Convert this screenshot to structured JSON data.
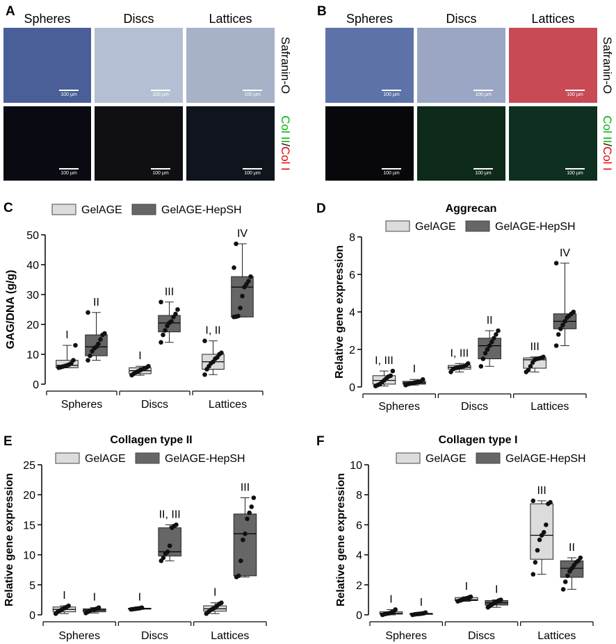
{
  "figure": {
    "micrograph_panels": [
      {
        "letter": "A",
        "column_titles": [
          "Spheres",
          "Discs",
          "Lattices"
        ],
        "row_labels": {
          "top": "Safranin-O",
          "bottom_green": "Col II",
          "slash": "/",
          "bottom_red": "Col I"
        },
        "scale_bar": "100 µm",
        "row_colors": {
          "top": [
            "#4a5f98",
            "#b5bfd3",
            "#a7b2c9"
          ],
          "bottom": [
            "#0a0a12",
            "#101014",
            "#10141c"
          ]
        },
        "label_colors": {
          "col_ii": "#00b000",
          "col_i": "#e00000"
        }
      },
      {
        "letter": "B",
        "column_titles": [
          "Spheres",
          "Discs",
          "Lattices"
        ],
        "row_labels": {
          "top": "Safranin-O",
          "bottom_green": "Col II",
          "slash": "/",
          "bottom_red": "Col I"
        },
        "scale_bar": "100 µm",
        "row_colors": {
          "top": [
            "#5d73a8",
            "#9aa6c3",
            "#c74a55"
          ],
          "bottom": [
            "#08080c",
            "#0d2a1a",
            "#0f3020"
          ]
        },
        "label_colors": {
          "col_ii": "#00b000",
          "col_i": "#e00000"
        }
      }
    ]
  },
  "legend": {
    "series": [
      "GelAGE",
      "GelAGE-HepSH"
    ],
    "colors": {
      "GelAGE": "#dcdcdc",
      "GelAGE-HepSH": "#666666"
    }
  },
  "chart_data": [
    {
      "panel": "C",
      "type": "box",
      "title": "",
      "ylabel": "GAG/DNA (g/g)",
      "ylim": [
        0,
        50
      ],
      "yticks": [
        0,
        10,
        20,
        30,
        40,
        50
      ],
      "categories": [
        "Spheres",
        "Discs",
        "Lattices"
      ],
      "series": [
        {
          "name": "GelAGE",
          "boxes": [
            {
              "min": 5.5,
              "q1": 5.5,
              "median": 6.3,
              "q3": 8.0,
              "max": 13.0,
              "points": [
                5.5,
                5.7,
                5.9,
                6.1,
                6.3,
                6.6,
                7.0,
                8.0,
                13.0
              ],
              "label": "I"
            },
            {
              "min": 3.0,
              "q1": 3.5,
              "median": 4.5,
              "q3": 5.5,
              "max": 6.0,
              "points": [
                3.0,
                3.5,
                4.0,
                4.3,
                4.6,
                5.0,
                5.3,
                5.5,
                6.0
              ],
              "label": "I"
            },
            {
              "min": 3.2,
              "q1": 5.0,
              "median": 7.5,
              "q3": 10.0,
              "max": 14.5,
              "points": [
                3.2,
                5.0,
                6.0,
                7.0,
                7.5,
                8.5,
                9.0,
                10.0,
                10.5,
                14.5
              ],
              "label": "I, II"
            }
          ]
        },
        {
          "name": "GelAGE-HepSH",
          "boxes": [
            {
              "min": 8.0,
              "q1": 9.5,
              "median": 12.5,
              "q3": 16.5,
              "max": 24.0,
              "points": [
                8.0,
                9.5,
                11.0,
                12.0,
                12.5,
                13.5,
                15.0,
                16.5,
                17.0,
                24.0
              ],
              "label": "II"
            },
            {
              "min": 14.0,
              "q1": 17.5,
              "median": 20.5,
              "q3": 23.0,
              "max": 27.5,
              "points": [
                14.0,
                16.5,
                18.0,
                19.5,
                20.5,
                21.0,
                22.5,
                23.5,
                25.0,
                27.5
              ],
              "label": "III"
            },
            {
              "min": 22.5,
              "q1": 22.5,
              "median": 32.5,
              "q3": 36.0,
              "max": 47.0,
              "points": [
                22.5,
                22.6,
                22.8,
                25.5,
                29.5,
                32.5,
                33.5,
                34.5,
                36.0,
                39.0,
                47.0
              ],
              "label": "IV"
            }
          ]
        }
      ]
    },
    {
      "panel": "D",
      "type": "box",
      "title": "Aggrecan",
      "ylabel": "Relative gene expression",
      "ylim": [
        0,
        8
      ],
      "yticks": [
        0,
        2,
        4,
        6,
        8
      ],
      "categories": [
        "Spheres",
        "Discs",
        "Lattices"
      ],
      "series": [
        {
          "name": "GelAGE",
          "boxes": [
            {
              "min": 0.05,
              "q1": 0.15,
              "median": 0.35,
              "q3": 0.6,
              "max": 0.85,
              "points": [
                0.05,
                0.1,
                0.15,
                0.25,
                0.35,
                0.45,
                0.55,
                0.6,
                0.85
              ],
              "label": "I, III"
            },
            {
              "min": 0.8,
              "q1": 0.95,
              "median": 1.05,
              "q3": 1.15,
              "max": 1.25,
              "points": [
                0.8,
                0.95,
                1.0,
                1.02,
                1.05,
                1.08,
                1.1,
                1.15,
                1.25
              ],
              "label": "I, III"
            },
            {
              "min": 0.8,
              "q1": 1.0,
              "median": 1.45,
              "q3": 1.55,
              "max": 1.6,
              "points": [
                0.8,
                0.9,
                1.1,
                1.3,
                1.45,
                1.5,
                1.52,
                1.55,
                1.6
              ],
              "label": "III"
            }
          ]
        },
        {
          "name": "GelAGE-HepSH",
          "boxes": [
            {
              "min": 0.1,
              "q1": 0.15,
              "median": 0.22,
              "q3": 0.3,
              "max": 0.4,
              "points": [
                0.1,
                0.15,
                0.18,
                0.2,
                0.22,
                0.25,
                0.28,
                0.3,
                0.4
              ],
              "label": "I"
            },
            {
              "min": 1.1,
              "q1": 1.5,
              "median": 2.2,
              "q3": 2.6,
              "max": 3.0,
              "points": [
                1.1,
                1.5,
                1.8,
                2.0,
                2.2,
                2.4,
                2.6,
                2.8,
                3.0
              ],
              "label": "II"
            },
            {
              "min": 2.2,
              "q1": 3.1,
              "median": 3.5,
              "q3": 3.9,
              "max": 6.6,
              "points": [
                2.2,
                2.8,
                3.1,
                3.3,
                3.5,
                3.7,
                3.8,
                3.9,
                4.0,
                6.6
              ],
              "label": "IV"
            }
          ]
        }
      ]
    },
    {
      "panel": "E",
      "type": "box",
      "title": "Collagen type II",
      "ylabel": "Relative gene expression",
      "ylim": [
        0,
        25
      ],
      "yticks": [
        0,
        5,
        10,
        15,
        20,
        25
      ],
      "categories": [
        "Spheres",
        "Discs",
        "Lattices"
      ],
      "series": [
        {
          "name": "GelAGE",
          "boxes": [
            {
              "min": 0.2,
              "q1": 0.5,
              "median": 0.9,
              "q3": 1.3,
              "max": 1.5,
              "points": [
                0.2,
                0.5,
                0.7,
                0.9,
                1.1,
                1.3,
                1.5
              ],
              "label": "I"
            },
            {
              "min": 0.9,
              "q1": 0.95,
              "median": 1.0,
              "q3": 1.1,
              "max": 1.2,
              "points": [
                0.9,
                0.95,
                1.0,
                1.05,
                1.1,
                1.2
              ],
              "label": "I"
            },
            {
              "min": 0.2,
              "q1": 0.6,
              "median": 1.0,
              "q3": 1.5,
              "max": 2.0,
              "points": [
                0.2,
                0.5,
                0.8,
                1.0,
                1.2,
                1.5,
                1.8,
                2.0
              ],
              "label": "I"
            }
          ]
        },
        {
          "name": "GelAGE-HepSH",
          "boxes": [
            {
              "min": 0.3,
              "q1": 0.5,
              "median": 0.8,
              "q3": 1.0,
              "max": 1.2,
              "points": [
                0.3,
                0.5,
                0.7,
                0.8,
                0.9,
                1.0,
                1.2
              ],
              "label": "I"
            },
            {
              "min": 9.0,
              "q1": 9.8,
              "median": 10.5,
              "q3": 14.5,
              "max": 15.0,
              "points": [
                9.0,
                9.5,
                10.2,
                10.5,
                11.5,
                14.5,
                14.8,
                15.0
              ],
              "label": "II, III"
            },
            {
              "min": 6.3,
              "q1": 6.5,
              "median": 13.5,
              "q3": 16.8,
              "max": 19.5,
              "points": [
                6.3,
                6.5,
                9.0,
                12.5,
                13.5,
                16.0,
                17.0,
                18.0,
                19.5
              ],
              "label": "III"
            }
          ]
        }
      ]
    },
    {
      "panel": "F",
      "type": "box",
      "title": "Collagen type I",
      "ylabel": "Relative gene expression",
      "ylim": [
        0,
        10
      ],
      "yticks": [
        0,
        2,
        4,
        6,
        8,
        10
      ],
      "categories": [
        "Spheres",
        "Discs",
        "Lattices"
      ],
      "series": [
        {
          "name": "GelAGE",
          "boxes": [
            {
              "min": 0.0,
              "q1": 0.05,
              "median": 0.1,
              "q3": 0.2,
              "max": 0.35,
              "points": [
                0.0,
                0.05,
                0.08,
                0.1,
                0.15,
                0.2,
                0.35
              ],
              "label": "I"
            },
            {
              "min": 0.9,
              "q1": 0.95,
              "median": 1.0,
              "q3": 1.15,
              "max": 1.2,
              "points": [
                0.9,
                0.95,
                1.0,
                1.05,
                1.1,
                1.15,
                1.2
              ],
              "label": "I"
            },
            {
              "min": 2.7,
              "q1": 3.7,
              "median": 5.3,
              "q3": 7.4,
              "max": 7.6,
              "points": [
                2.7,
                3.5,
                4.3,
                5.0,
                5.3,
                5.5,
                6.0,
                7.4,
                7.5,
                7.6
              ],
              "label": "III"
            }
          ]
        },
        {
          "name": "GelAGE-HepSH",
          "boxes": [
            {
              "min": 0.0,
              "q1": 0.03,
              "median": 0.06,
              "q3": 0.1,
              "max": 0.15,
              "points": [
                0.0,
                0.03,
                0.05,
                0.06,
                0.08,
                0.1,
                0.15
              ],
              "label": "I"
            },
            {
              "min": 0.5,
              "q1": 0.65,
              "median": 0.8,
              "q3": 0.95,
              "max": 1.0,
              "points": [
                0.5,
                0.6,
                0.7,
                0.8,
                0.85,
                0.95,
                1.0
              ],
              "label": "I"
            },
            {
              "min": 1.7,
              "q1": 2.5,
              "median": 3.1,
              "q3": 3.6,
              "max": 3.8,
              "points": [
                1.7,
                2.2,
                2.6,
                2.9,
                3.1,
                3.3,
                3.5,
                3.6,
                3.8
              ],
              "label": "II"
            }
          ]
        }
      ]
    }
  ]
}
